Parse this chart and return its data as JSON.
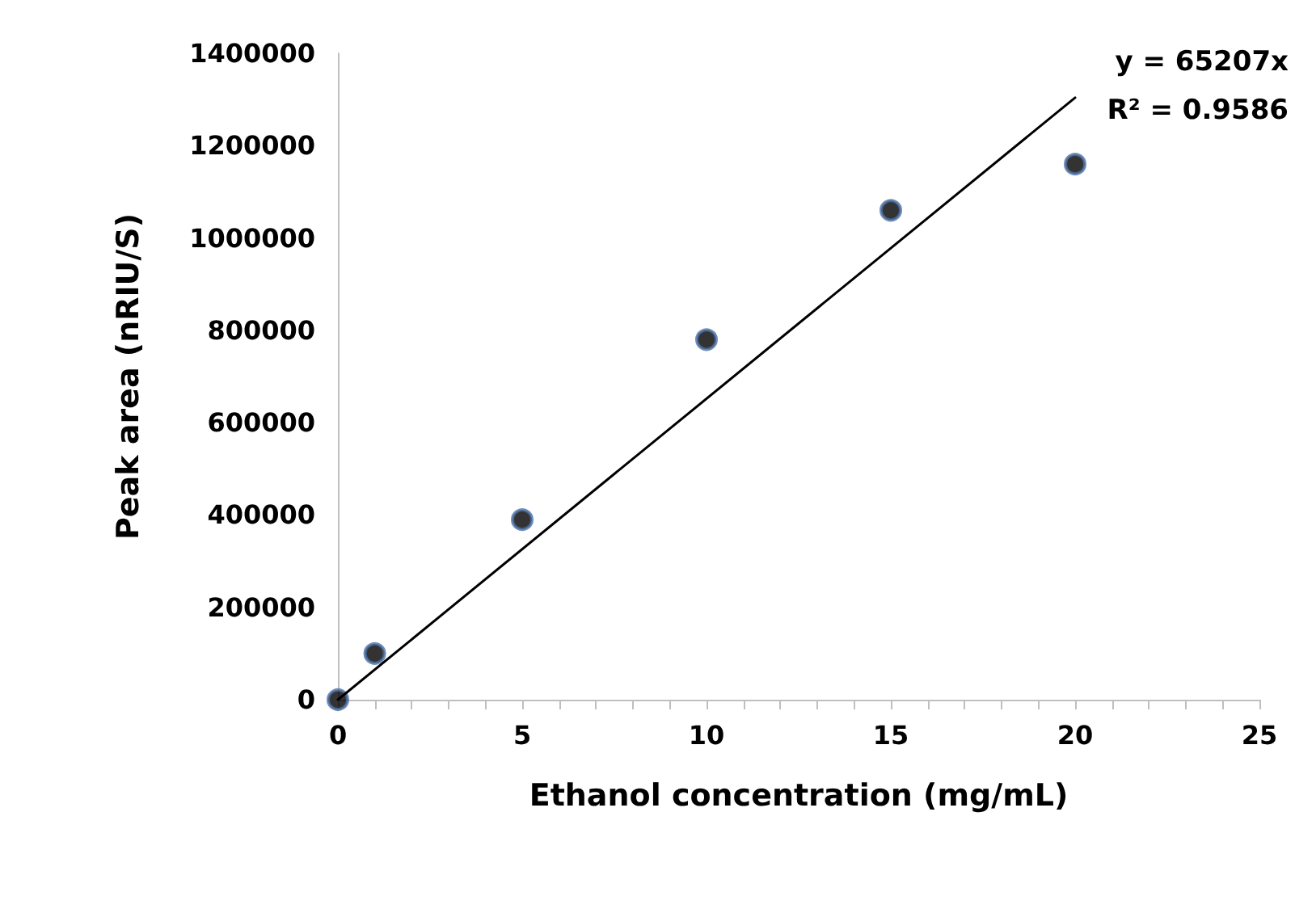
{
  "chart_data": {
    "type": "scatter",
    "xlabel": "Ethanol concentration (mg/mL)",
    "ylabel": "Peak area (nRIU/S)",
    "annotations": [
      "y = 65207x",
      "R² = 0.9586"
    ],
    "marker": "circle",
    "x": [
      0,
      1,
      5,
      10,
      15,
      20
    ],
    "series": [
      {
        "color": "#000000",
        "values": [
          0,
          100000,
          390000,
          780000,
          1060000,
          1160000
        ]
      },
      {
        "type": "line",
        "marker": "none",
        "color": "#000000",
        "x": [
          0,
          20
        ],
        "values": [
          0,
          1304000
        ]
      }
    ],
    "xlim": [
      0,
      25
    ],
    "xticks": [
      0,
      5,
      10,
      15,
      20,
      25
    ],
    "ylim": [
      0,
      1400000
    ],
    "yticks": [
      0,
      200000,
      400000,
      600000,
      800000,
      1000000,
      1200000,
      1400000
    ]
  }
}
